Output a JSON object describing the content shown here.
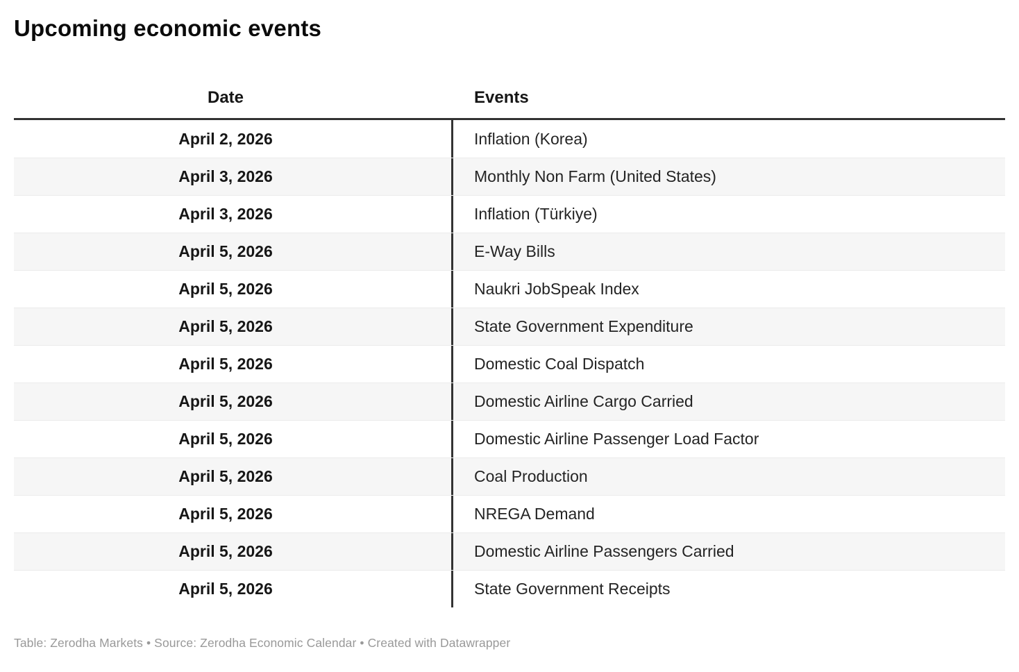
{
  "title": "Upcoming economic events",
  "footer": "Table: Zerodha Markets • Source: Zerodha Economic Calendar • Created with Datawrapper",
  "chart_data": {
    "type": "table",
    "title": "Upcoming economic events",
    "columns": [
      "Date",
      "Events"
    ],
    "rows": [
      {
        "date": "April 2, 2026",
        "event": "Inflation (Korea)"
      },
      {
        "date": "April 3, 2026",
        "event": "Monthly Non Farm (United States)"
      },
      {
        "date": "April 3, 2026",
        "event": "Inflation (Türkiye)"
      },
      {
        "date": "April 5, 2026",
        "event": "E-Way Bills"
      },
      {
        "date": "April 5, 2026",
        "event": "Naukri JobSpeak Index"
      },
      {
        "date": "April 5, 2026",
        "event": "State Government Expenditure"
      },
      {
        "date": "April 5, 2026",
        "event": "Domestic Coal Dispatch"
      },
      {
        "date": "April 5, 2026",
        "event": "Domestic Airline Cargo Carried"
      },
      {
        "date": "April 5, 2026",
        "event": "Domestic Airline Passenger Load Factor"
      },
      {
        "date": "April 5, 2026",
        "event": "Coal Production"
      },
      {
        "date": "April 5, 2026",
        "event": "NREGA Demand"
      },
      {
        "date": "April 5, 2026",
        "event": "Domestic Airline Passengers Carried"
      },
      {
        "date": "April 5, 2026",
        "event": "State Government Receipts"
      }
    ],
    "layout": {
      "date_column_alignment": "center",
      "events_column_alignment": "left",
      "alternating_row_stripes": true
    }
  },
  "colors": {
    "header_rule": "#333333",
    "column_divider": "#333333",
    "row_alt_background": "#f6f6f6",
    "row_separator": "#ebebeb",
    "footer_text": "#999999",
    "body_text": "#242424"
  }
}
